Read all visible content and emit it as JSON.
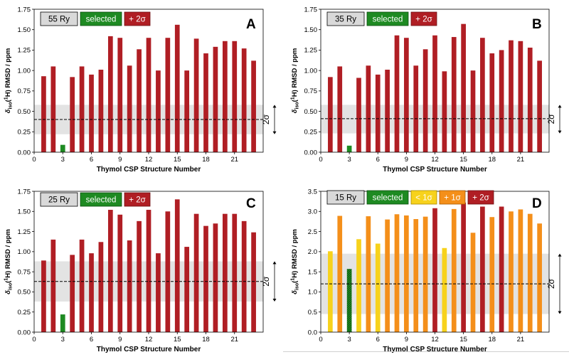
{
  "colors": {
    "dark_red": "#b01e24",
    "green": "#1e8a22",
    "orange": "#f48f1a",
    "yellow": "#f7d21c",
    "band": "#e3e3e3",
    "ref_line": "#000000",
    "label_box": "#d9d9d9"
  },
  "common": {
    "xlabel": "Thymol CSP Structure Number",
    "ylabel_main": "RMSD / ppm",
    "ylabel_iso": "iso",
    "ylabel_nuc": "1",
    "ylabel_nuc_sym": "H",
    "ylabel_delta": "δ",
    "sigma_label": "2σ",
    "x_ticks": [
      "0",
      "3",
      "6",
      "9",
      "12",
      "15",
      "18",
      "21"
    ]
  },
  "chart_data": [
    {
      "type": "bar",
      "panel": "A",
      "cutoff": "55 Ry",
      "legend": [
        "55 Ry",
        "selected",
        "+ 2σ"
      ],
      "xlabel": "Thymol CSP Structure Number",
      "ylabel": "δiso(1H) RMSD / ppm",
      "ylim": [
        0,
        1.75
      ],
      "y_ticks": [
        "0.00",
        "0.25",
        "0.50",
        "0.75",
        "1.00",
        "1.25",
        "1.50",
        "1.75"
      ],
      "xlim": [
        0,
        24
      ],
      "mean": 0.4,
      "band": [
        0.22,
        0.58
      ],
      "selected": 3,
      "x": [
        1,
        2,
        3,
        4,
        5,
        6,
        7,
        8,
        9,
        10,
        11,
        12,
        13,
        14,
        15,
        16,
        17,
        18,
        19,
        20,
        21,
        22,
        23
      ],
      "values": [
        0.93,
        1.05,
        0.09,
        0.92,
        1.05,
        0.95,
        1.01,
        1.42,
        1.4,
        1.06,
        1.26,
        1.4,
        1.0,
        1.4,
        1.56,
        1.0,
        1.39,
        1.21,
        1.29,
        1.36,
        1.36,
        1.27,
        1.12
      ],
      "categories": [
        "red",
        "red",
        "green",
        "red",
        "red",
        "red",
        "red",
        "red",
        "red",
        "red",
        "red",
        "red",
        "red",
        "red",
        "red",
        "red",
        "red",
        "red",
        "red",
        "red",
        "red",
        "red",
        "red"
      ]
    },
    {
      "type": "bar",
      "panel": "B",
      "cutoff": "35 Ry",
      "legend": [
        "35 Ry",
        "selected",
        "+ 2σ"
      ],
      "xlabel": "Thymol CSP Structure Number",
      "ylabel": "δiso(1H) RMSD / ppm",
      "ylim": [
        0,
        1.75
      ],
      "y_ticks": [
        "0.00",
        "0.25",
        "0.50",
        "0.75",
        "1.00",
        "1.25",
        "1.50",
        "1.75"
      ],
      "xlim": [
        0,
        24
      ],
      "mean": 0.41,
      "band": [
        0.23,
        0.58
      ],
      "selected": 3,
      "x": [
        1,
        2,
        3,
        4,
        5,
        6,
        7,
        8,
        9,
        10,
        11,
        12,
        13,
        14,
        15,
        16,
        17,
        18,
        19,
        20,
        21,
        22,
        23
      ],
      "values": [
        0.92,
        1.05,
        0.08,
        0.91,
        1.06,
        0.95,
        1.01,
        1.43,
        1.4,
        1.06,
        1.26,
        1.43,
        0.99,
        1.41,
        1.57,
        1.0,
        1.4,
        1.21,
        1.25,
        1.37,
        1.36,
        1.28,
        1.12
      ],
      "categories": [
        "red",
        "red",
        "green",
        "red",
        "red",
        "red",
        "red",
        "red",
        "red",
        "red",
        "red",
        "red",
        "red",
        "red",
        "red",
        "red",
        "red",
        "red",
        "red",
        "red",
        "red",
        "red",
        "red"
      ]
    },
    {
      "type": "bar",
      "panel": "C",
      "cutoff": "25 Ry",
      "legend": [
        "25 Ry",
        "selected",
        "+ 2σ"
      ],
      "xlabel": "Thymol CSP Structure Number",
      "ylabel": "δiso(1H) RMSD / ppm",
      "ylim": [
        0,
        1.75
      ],
      "y_ticks": [
        "0.00",
        "0.25",
        "0.50",
        "0.75",
        "1.00",
        "1.25",
        "1.50",
        "1.75"
      ],
      "xlim": [
        0,
        24
      ],
      "mean": 0.63,
      "band": [
        0.38,
        0.88
      ],
      "selected": 3,
      "x": [
        1,
        2,
        3,
        4,
        5,
        6,
        7,
        8,
        9,
        10,
        11,
        12,
        13,
        14,
        15,
        16,
        17,
        18,
        19,
        20,
        21,
        22,
        23
      ],
      "values": [
        0.89,
        1.15,
        0.22,
        0.96,
        1.15,
        0.98,
        1.12,
        1.52,
        1.46,
        1.14,
        1.38,
        1.52,
        0.98,
        1.5,
        1.65,
        1.06,
        1.47,
        1.32,
        1.35,
        1.47,
        1.47,
        1.38,
        1.24
      ],
      "categories": [
        "red",
        "red",
        "green",
        "red",
        "red",
        "red",
        "red",
        "red",
        "red",
        "red",
        "red",
        "red",
        "red",
        "red",
        "red",
        "red",
        "red",
        "red",
        "red",
        "red",
        "red",
        "red",
        "red"
      ]
    },
    {
      "type": "bar",
      "panel": "D",
      "cutoff": "15 Ry",
      "legend": [
        "15 Ry",
        "selected",
        "< 1σ",
        "+ 1σ",
        "+ 2σ"
      ],
      "xlabel": "Thymol CSP Structure Number",
      "ylabel": "δiso(1H) RMSD / ppm",
      "ylim": [
        0,
        3.5
      ],
      "y_ticks": [
        "0.0",
        "0.5",
        "1.0",
        "1.5",
        "2.0",
        "2.5",
        "3.0",
        "3.5"
      ],
      "xlim": [
        0,
        24
      ],
      "mean": 1.2,
      "band": [
        0.45,
        1.95
      ],
      "selected": 3,
      "x": [
        1,
        2,
        3,
        4,
        5,
        6,
        7,
        8,
        9,
        10,
        11,
        12,
        13,
        14,
        15,
        16,
        17,
        18,
        19,
        20,
        21,
        22,
        23
      ],
      "values": [
        2.01,
        2.89,
        1.57,
        2.31,
        2.88,
        2.2,
        2.8,
        2.93,
        2.9,
        2.81,
        2.87,
        3.08,
        2.09,
        3.06,
        3.22,
        2.47,
        3.12,
        2.86,
        3.12,
        3.0,
        3.05,
        2.94,
        2.7
      ],
      "categories": [
        "yellow",
        "orange",
        "green-hatch",
        "yellow",
        "orange",
        "yellow",
        "orange",
        "orange",
        "orange",
        "orange",
        "orange",
        "red",
        "yellow",
        "orange",
        "red",
        "orange",
        "red",
        "orange",
        "red",
        "orange",
        "orange",
        "orange",
        "orange"
      ]
    }
  ]
}
